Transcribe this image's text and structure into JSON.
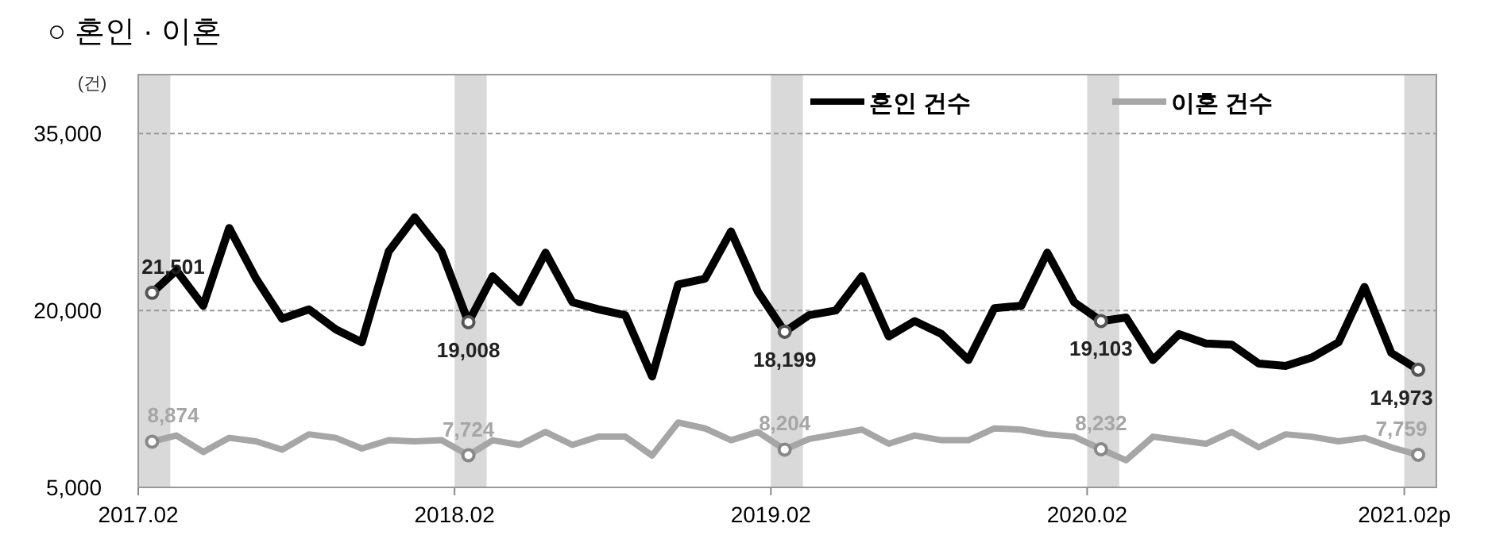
{
  "chart_data": {
    "type": "line",
    "title": "○ 혼인 · 이혼",
    "ylabel": "(건)",
    "x": [
      "2017-02",
      "2017-03",
      "2017-04",
      "2017-05",
      "2017-06",
      "2017-07",
      "2017-08",
      "2017-09",
      "2017-10",
      "2017-11",
      "2017-12",
      "2018-01",
      "2018-02",
      "2018-03",
      "2018-04",
      "2018-05",
      "2018-06",
      "2018-07",
      "2018-08",
      "2018-09",
      "2018-10",
      "2018-11",
      "2018-12",
      "2019-01",
      "2019-02",
      "2019-03",
      "2019-04",
      "2019-05",
      "2019-06",
      "2019-07",
      "2019-08",
      "2019-09",
      "2019-10",
      "2019-11",
      "2019-12",
      "2020-01",
      "2020-02",
      "2020-03",
      "2020-04",
      "2020-05",
      "2020-06",
      "2020-07",
      "2020-08",
      "2020-09",
      "2020-10",
      "2020-11",
      "2020-12",
      "2021-01",
      "2021-02"
    ],
    "series": [
      {
        "name": "혼인 건수",
        "color": "#000000",
        "values": [
          21501,
          23400,
          20400,
          27000,
          22700,
          19300,
          20100,
          18400,
          17300,
          25000,
          27900,
          25000,
          19008,
          22900,
          20700,
          24900,
          20700,
          20100,
          19600,
          14400,
          22200,
          22700,
          26700,
          21600,
          18199,
          19600,
          20000,
          22900,
          17800,
          19100,
          18000,
          15800,
          20200,
          20400,
          24900,
          20700,
          19103,
          19400,
          15800,
          18000,
          17200,
          17100,
          15500,
          15300,
          16000,
          17300,
          22000,
          16400,
          14973
        ],
        "value_labels": [
          "21,501",
          null,
          null,
          null,
          null,
          null,
          null,
          null,
          null,
          null,
          null,
          null,
          "19,008",
          null,
          null,
          null,
          null,
          null,
          null,
          null,
          null,
          null,
          null,
          null,
          "18,199",
          null,
          null,
          null,
          null,
          null,
          null,
          null,
          null,
          null,
          null,
          null,
          "19,103",
          null,
          null,
          null,
          null,
          null,
          null,
          null,
          null,
          null,
          null,
          null,
          "14,973"
        ]
      },
      {
        "name": "이혼 건수",
        "color": "#a6a6a6",
        "values": [
          8874,
          9400,
          8000,
          9200,
          8900,
          8200,
          9500,
          9200,
          8300,
          9000,
          8900,
          9000,
          7724,
          9000,
          8600,
          9700,
          8600,
          9300,
          9300,
          7700,
          10500,
          10000,
          9000,
          9700,
          8204,
          9100,
          9500,
          9900,
          8700,
          9400,
          9000,
          9000,
          10000,
          9900,
          9500,
          9300,
          8232,
          7300,
          9300,
          9000,
          8700,
          9700,
          8400,
          9500,
          9300,
          8900,
          9200,
          8400,
          7759
        ],
        "value_labels": [
          "8,874",
          null,
          null,
          null,
          null,
          null,
          null,
          null,
          null,
          null,
          null,
          null,
          "7,724",
          null,
          null,
          null,
          null,
          null,
          null,
          null,
          null,
          null,
          null,
          null,
          "8,204",
          null,
          null,
          null,
          null,
          null,
          null,
          null,
          null,
          null,
          null,
          null,
          "8,232",
          null,
          null,
          null,
          null,
          null,
          null,
          null,
          null,
          null,
          null,
          null,
          "7,759"
        ]
      }
    ],
    "xlim": [
      "2017-01-16",
      "2021-02-22"
    ],
    "xticks": [
      {
        "value": "2017-01-16",
        "label": "2017.02"
      },
      {
        "value": "2018-01-16",
        "label": "2018.02"
      },
      {
        "value": "2019-01-16",
        "label": "2019.02"
      },
      {
        "value": "2020-01-16",
        "label": "2020.02"
      },
      {
        "value": "2021-01-16",
        "label": "2021.02p"
      }
    ],
    "ylim": [
      5000,
      40000
    ],
    "yticks": [
      {
        "value": 5000,
        "label": "5,000"
      },
      {
        "value": 20000,
        "label": "20,000"
      },
      {
        "value": 35000,
        "label": "35,000"
      }
    ],
    "bands": [
      {
        "axis": "x",
        "from": "2017-01-16",
        "to": "2017-02-22",
        "color": "#d9d9d9"
      },
      {
        "axis": "x",
        "from": "2018-01-16",
        "to": "2018-02-22",
        "color": "#d9d9d9"
      },
      {
        "axis": "x",
        "from": "2019-01-16",
        "to": "2019-02-22",
        "color": "#d9d9d9"
      },
      {
        "axis": "x",
        "from": "2020-01-16",
        "to": "2020-02-22",
        "color": "#d9d9d9"
      },
      {
        "axis": "x",
        "from": "2021-01-16",
        "to": "2021-02-22",
        "color": "#d9d9d9"
      }
    ],
    "grid": "y",
    "legend": "top right",
    "line_style": "solid"
  }
}
